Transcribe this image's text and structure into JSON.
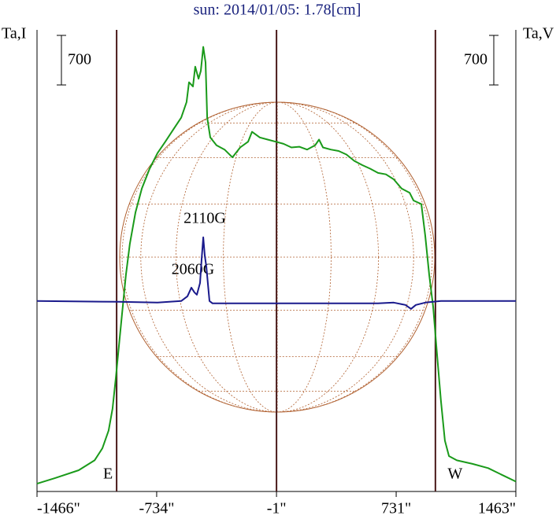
{
  "chart_data": {
    "type": "line",
    "title": "sun: 2014/01/05: 1.78[cm]",
    "ylabel": "Ta,I",
    "y2label": "Ta,V",
    "xlim": [
      -1466,
      1463
    ],
    "xticks": [
      {
        "value": -1466,
        "label": "-1466\""
      },
      {
        "value": -734,
        "label": "-734\""
      },
      {
        "value": -1,
        "label": "-1\""
      },
      {
        "value": 731,
        "label": "731\""
      },
      {
        "value": 1463,
        "label": "1463\""
      }
    ],
    "ylim": [
      0,
      6520
    ],
    "y2lim": [
      -2690,
      3830
    ],
    "yscale": 700,
    "y2scale": 700,
    "limbs": [
      {
        "label": "E",
        "x": -979
      },
      {
        "label": "W",
        "x": 971
      }
    ],
    "annotations": [
      "2110G",
      "2060G"
    ],
    "series": [
      {
        "name": "Ta,I",
        "color": "#1a9a1a",
        "x": [
          -1466,
          -1355,
          -1211,
          -1114,
          -1066,
          -1028,
          -1004,
          -984,
          -970,
          -946,
          -922,
          -898,
          -864,
          -825,
          -777,
          -729,
          -681,
          -633,
          -584,
          -551,
          -536,
          -512,
          -498,
          -478,
          -464,
          -449,
          -435,
          -425,
          -406,
          -368,
          -319,
          -271,
          -223,
          -175,
          -151,
          -103,
          -55,
          -6,
          42,
          90,
          138,
          186,
          235,
          259,
          283,
          331,
          379,
          427,
          475,
          524,
          572,
          620,
          668,
          716,
          764,
          813,
          837,
          885,
          909,
          933,
          957,
          981,
          1005,
          1029,
          1054,
          1102,
          1198,
          1294,
          1391,
          1463
        ],
        "values": [
          110,
          190,
          300,
          440,
          610,
          860,
          1170,
          1610,
          1940,
          2500,
          3060,
          3500,
          3940,
          4280,
          4560,
          4780,
          4940,
          5110,
          5280,
          5500,
          5780,
          5720,
          6000,
          5830,
          5940,
          6280,
          6060,
          5280,
          5000,
          4890,
          4830,
          4720,
          4860,
          4940,
          5080,
          5000,
          4970,
          4940,
          4910,
          4860,
          4870,
          4830,
          4890,
          4970,
          4860,
          4830,
          4810,
          4760,
          4670,
          4610,
          4560,
          4500,
          4480,
          4410,
          4280,
          4220,
          4110,
          4060,
          3610,
          3060,
          2610,
          1940,
          1280,
          720,
          500,
          440,
          390,
          330,
          220,
          140
        ]
      },
      {
        "name": "Ta,V",
        "color": "#1a1a8c",
        "axis": "y2",
        "x": [
          -1466,
          -970,
          -729,
          -584,
          -546,
          -522,
          -503,
          -488,
          -469,
          -459,
          -449,
          -440,
          -430,
          -421,
          -411,
          -392,
          -247,
          -6,
          235,
          620,
          716,
          788,
          822,
          851,
          909,
          1005,
          1463
        ],
        "values": [
          0,
          -11,
          -22,
          0,
          67,
          189,
          122,
          89,
          255,
          589,
          900,
          644,
          478,
          255,
          0,
          -33,
          -33,
          -33,
          -33,
          -33,
          -22,
          -55,
          -111,
          -55,
          -22,
          0,
          0
        ]
      }
    ]
  }
}
